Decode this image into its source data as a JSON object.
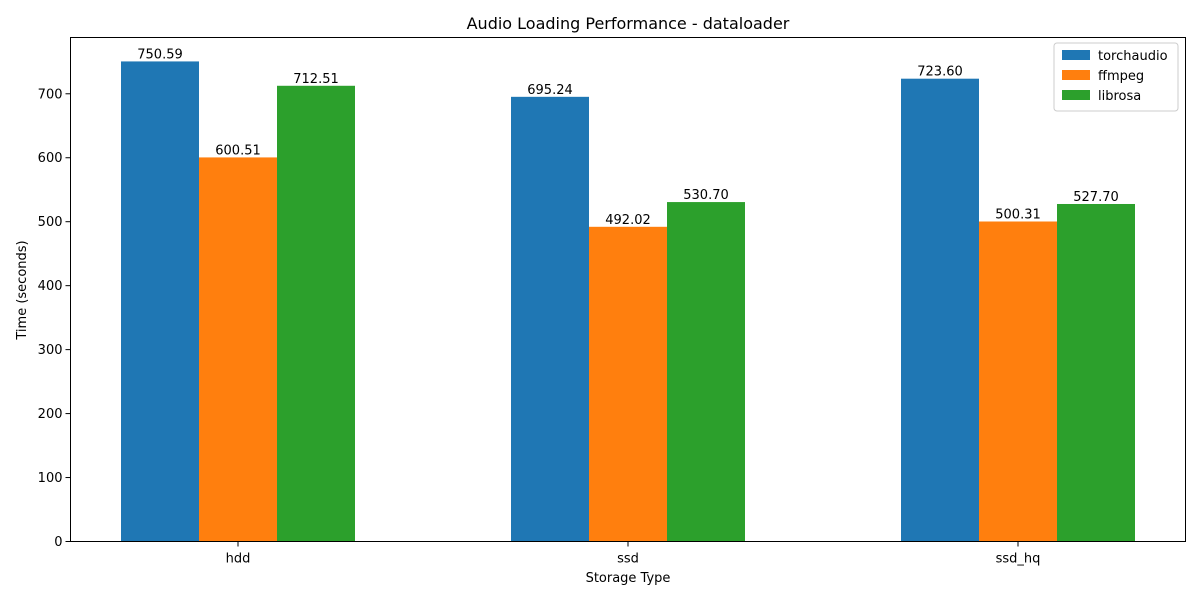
{
  "chart_data": {
    "type": "bar",
    "title": "Audio Loading Performance - dataloader",
    "xlabel": "Storage Type",
    "ylabel": "Time (seconds)",
    "categories": [
      "hdd",
      "ssd",
      "ssd_hq"
    ],
    "series": [
      {
        "name": "torchaudio",
        "color": "#1f77b4",
        "values": [
          750.59,
          695.24,
          723.6
        ],
        "labels": [
          "750.59",
          "695.24",
          "723.60"
        ]
      },
      {
        "name": "ffmpeg",
        "color": "#ff7f0e",
        "values": [
          600.51,
          492.02,
          500.31
        ],
        "labels": [
          "600.51",
          "492.02",
          "500.31"
        ]
      },
      {
        "name": "librosa",
        "color": "#2ca02c",
        "values": [
          712.51,
          530.7,
          527.7
        ],
        "labels": [
          "712.51",
          "530.70",
          "527.70"
        ]
      }
    ],
    "yticks": [
      0,
      100,
      200,
      300,
      400,
      500,
      600,
      700
    ],
    "ylim": [
      0,
      788
    ],
    "grid": false,
    "legend": "top-right"
  }
}
